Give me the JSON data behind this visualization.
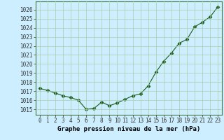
{
  "x": [
    0,
    1,
    2,
    3,
    4,
    5,
    6,
    7,
    8,
    9,
    10,
    11,
    12,
    13,
    14,
    15,
    16,
    17,
    18,
    19,
    20,
    21,
    22,
    23
  ],
  "y": [
    1017.3,
    1017.1,
    1016.8,
    1016.5,
    1016.3,
    1016.0,
    1015.0,
    1015.1,
    1015.8,
    1015.4,
    1015.7,
    1016.1,
    1016.5,
    1016.7,
    1017.6,
    1019.1,
    1020.3,
    1021.2,
    1022.3,
    1022.7,
    1024.1,
    1024.6,
    1025.2,
    1026.3
  ],
  "line_color": "#1a5c1a",
  "marker": "D",
  "marker_size": 2.5,
  "line_width": 0.8,
  "bg_color": "#cceeff",
  "grid_color": "#aaccaa",
  "xlabel": "Graphe pression niveau de la mer (hPa)",
  "xlabel_fontsize": 6.5,
  "ylabel_ticks": [
    1015,
    1016,
    1017,
    1018,
    1019,
    1020,
    1021,
    1022,
    1023,
    1024,
    1025,
    1026
  ],
  "ylim": [
    1014.4,
    1026.9
  ],
  "xlim": [
    -0.5,
    23.5
  ],
  "tick_fontsize": 5.5,
  "xtick_labels": [
    "0",
    "1",
    "2",
    "3",
    "4",
    "5",
    "6",
    "7",
    "8",
    "9",
    "10",
    "11",
    "12",
    "13",
    "14",
    "15",
    "16",
    "17",
    "18",
    "19",
    "20",
    "21",
    "22",
    "23"
  ]
}
